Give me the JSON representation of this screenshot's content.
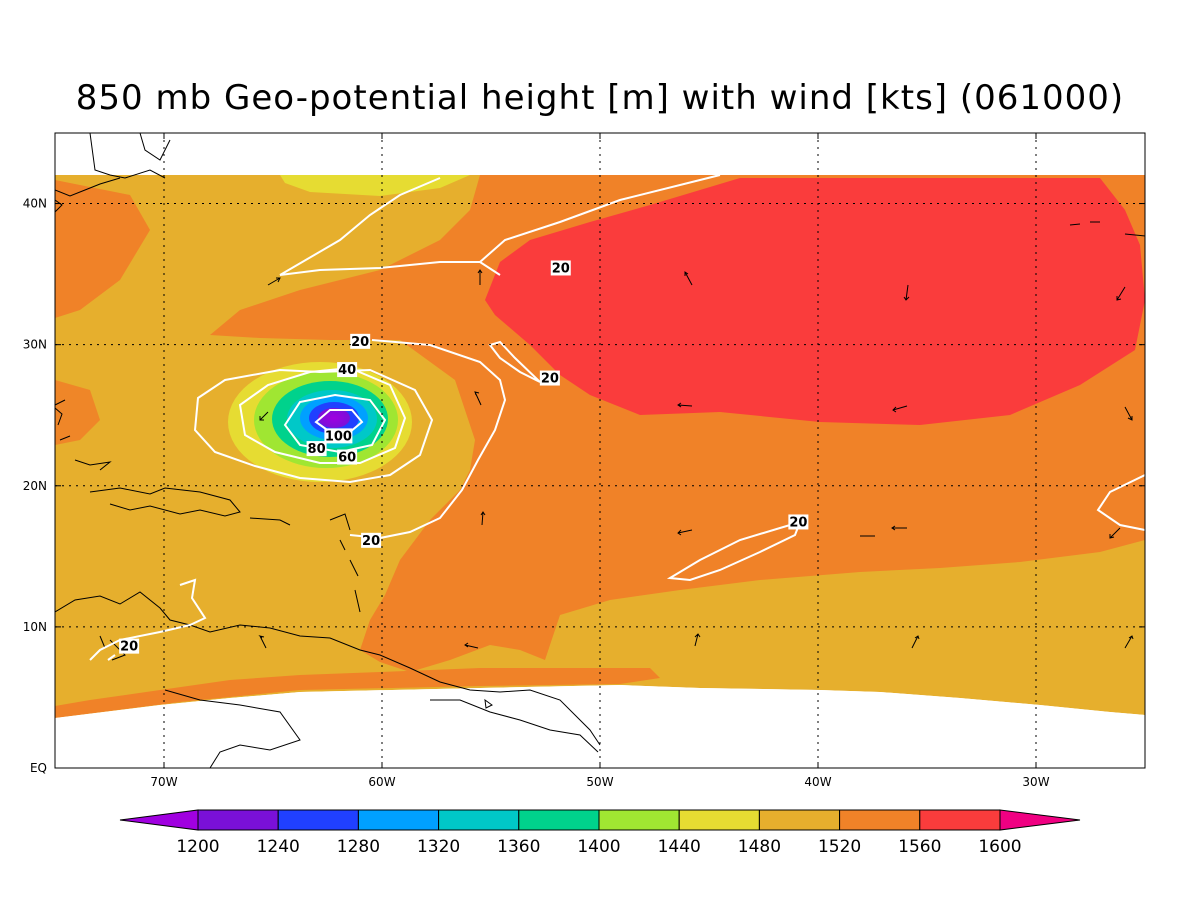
{
  "title": "850 mb Geo-potential height [m] with wind [kts] (061000)",
  "map": {
    "lon_range": [
      -75,
      -25
    ],
    "lat_range": [
      0,
      45
    ],
    "lon_ticks": [
      {
        "lon": -70,
        "label": "70W"
      },
      {
        "lon": -60,
        "label": "60W"
      },
      {
        "lon": -50,
        "label": "50W"
      },
      {
        "lon": -40,
        "label": "40W"
      },
      {
        "lon": -30,
        "label": "30W"
      }
    ],
    "lat_ticks": [
      {
        "lat": 40,
        "label": "40N"
      },
      {
        "lat": 30,
        "label": "30N"
      },
      {
        "lat": 20,
        "label": "20N"
      },
      {
        "lat": 10,
        "label": "10N"
      },
      {
        "lat": 0,
        "label": "EQ"
      }
    ],
    "grid": "dotted"
  },
  "colorbar": {
    "levels": [
      "1200",
      "1240",
      "1280",
      "1320",
      "1360",
      "1400",
      "1440",
      "1480",
      "1520",
      "1560",
      "1600"
    ],
    "colors": [
      "#a000e0",
      "#7a10d8",
      "#2040ff",
      "#00a0ff",
      "#00c8c8",
      "#00d28c",
      "#a0e632",
      "#e6dc32",
      "#e6af2d",
      "#f08228",
      "#fa3c3c",
      "#f00082"
    ]
  },
  "wind_contour_labels": [
    {
      "text": "20",
      "lon": -51.8,
      "lat": 35.4
    },
    {
      "text": "20",
      "lon": -61.0,
      "lat": 30.2
    },
    {
      "text": "40",
      "lon": -61.6,
      "lat": 28.2
    },
    {
      "text": "20",
      "lon": -52.3,
      "lat": 27.6
    },
    {
      "text": "100",
      "lon": -62.0,
      "lat": 23.5
    },
    {
      "text": "80",
      "lon": -63.0,
      "lat": 22.6
    },
    {
      "text": "60",
      "lon": -61.6,
      "lat": 22.0
    },
    {
      "text": "20",
      "lon": -60.5,
      "lat": 16.1
    },
    {
      "text": "20",
      "lon": -40.9,
      "lat": 17.4
    },
    {
      "text": "20",
      "lon": -71.6,
      "lat": 8.6
    }
  ]
}
